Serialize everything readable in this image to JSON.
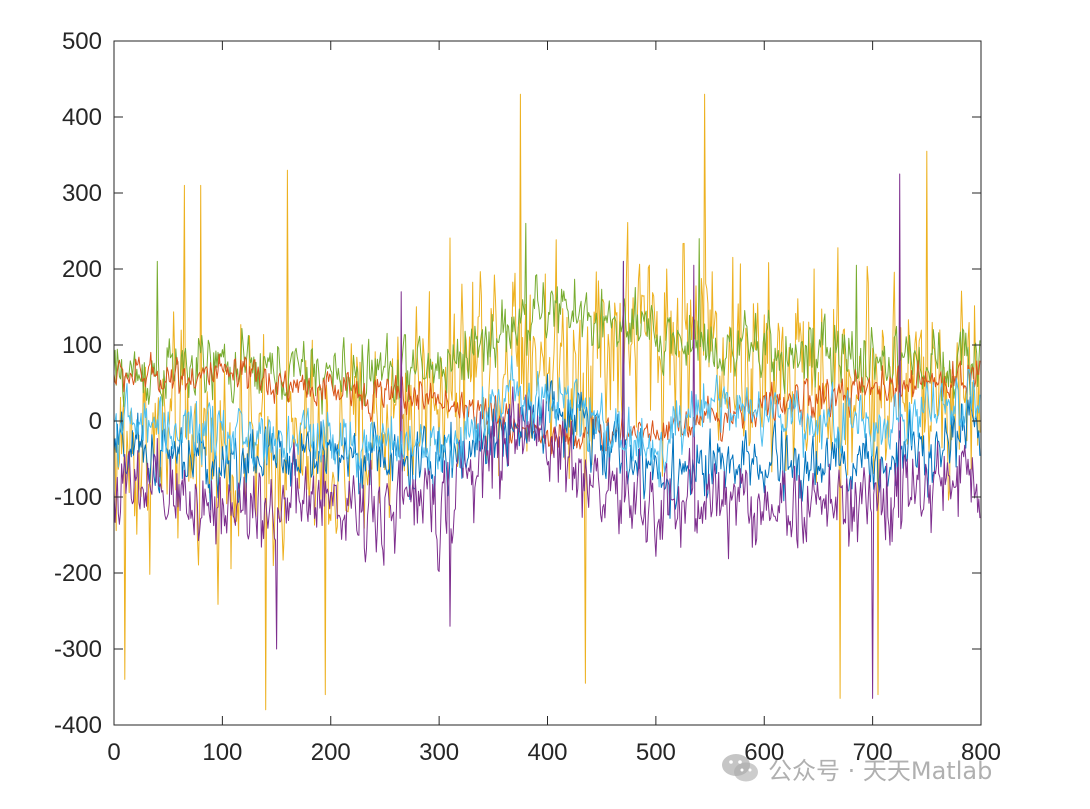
{
  "chart_data": {
    "type": "line",
    "title": "",
    "xlabel": "",
    "ylabel": "",
    "xlim": [
      0,
      800
    ],
    "ylim": [
      -400,
      500
    ],
    "xticks": [
      0,
      100,
      200,
      300,
      400,
      500,
      600,
      700,
      800
    ],
    "yticks": [
      -400,
      -300,
      -200,
      -100,
      0,
      100,
      200,
      300,
      400,
      500
    ],
    "xtick_labels": [
      "0",
      "100",
      "200",
      "300",
      "400",
      "500",
      "600",
      "700",
      "800"
    ],
    "ytick_labels": [
      "-400",
      "-300",
      "-200",
      "-100",
      "0",
      "100",
      "200",
      "300",
      "400",
      "500"
    ],
    "grid": false,
    "legend": "none",
    "n_points": 800,
    "series": [
      {
        "color": "#EDB120",
        "mean_trend_x": [
          0,
          100,
          200,
          300,
          380,
          420,
          450,
          500,
          550,
          600,
          700,
          800
        ],
        "mean_trend_y": [
          -40,
          -30,
          -60,
          60,
          120,
          60,
          110,
          110,
          120,
          50,
          60,
          40
        ],
        "spread": 140,
        "peaks_x": [
          65,
          80,
          160,
          375,
          545,
          750
        ],
        "peaks_y": [
          310,
          310,
          330,
          430,
          430,
          355
        ],
        "troughs_x": [
          10,
          140,
          195,
          435,
          670,
          705
        ],
        "troughs_y": [
          -340,
          -380,
          -360,
          -345,
          -365,
          -360
        ]
      },
      {
        "color": "#77AC30",
        "mean_trend_x": [
          0,
          100,
          200,
          300,
          400,
          500,
          600,
          700,
          800
        ],
        "mean_trend_y": [
          60,
          70,
          60,
          70,
          150,
          110,
          90,
          80,
          80
        ],
        "spread": 45,
        "peaks_x": [
          40,
          380,
          540,
          685
        ],
        "peaks_y": [
          210,
          260,
          240,
          205
        ],
        "troughs_x": [],
        "troughs_y": []
      },
      {
        "color": "#D95319",
        "mean_trend_x": [
          0,
          100,
          200,
          300,
          400,
          500,
          600,
          700,
          800
        ],
        "mean_trend_y": [
          60,
          60,
          40,
          30,
          -20,
          -10,
          20,
          40,
          60
        ],
        "spread": 25,
        "peaks_x": [],
        "peaks_y": [],
        "troughs_x": [],
        "troughs_y": []
      },
      {
        "color": "#0072BD",
        "mean_trend_x": [
          0,
          100,
          200,
          300,
          400,
          500,
          600,
          700,
          800
        ],
        "mean_trend_y": [
          -40,
          -60,
          -40,
          -60,
          20,
          -70,
          -60,
          -60,
          0
        ],
        "spread": 45,
        "peaks_x": [
          470
        ],
        "peaks_y": [
          210
        ],
        "troughs_x": [],
        "troughs_y": []
      },
      {
        "color": "#7E2F8E",
        "mean_trend_x": [
          0,
          100,
          200,
          300,
          380,
          450,
          500,
          550,
          600,
          700,
          800
        ],
        "mean_trend_y": [
          -90,
          -110,
          -110,
          -110,
          0,
          -90,
          -120,
          -100,
          -110,
          -110,
          -70
        ],
        "spread": 60,
        "peaks_x": [
          265,
          470,
          535,
          725
        ],
        "peaks_y": [
          170,
          210,
          205,
          325
        ],
        "troughs_x": [
          150,
          310,
          700
        ],
        "troughs_y": [
          -300,
          -270,
          -365
        ]
      },
      {
        "color": "#4DBEEE",
        "mean_trend_x": [
          0,
          100,
          200,
          300,
          380,
          420,
          500,
          550,
          600,
          700,
          800
        ],
        "mean_trend_y": [
          0,
          -20,
          -20,
          -40,
          50,
          20,
          -40,
          20,
          10,
          -10,
          30
        ],
        "spread": 40,
        "peaks_x": [],
        "peaks_y": [],
        "troughs_x": [],
        "troughs_y": []
      }
    ]
  },
  "watermark": {
    "text": "公众号 · 天天Matlab",
    "icon": "wechat-icon"
  }
}
